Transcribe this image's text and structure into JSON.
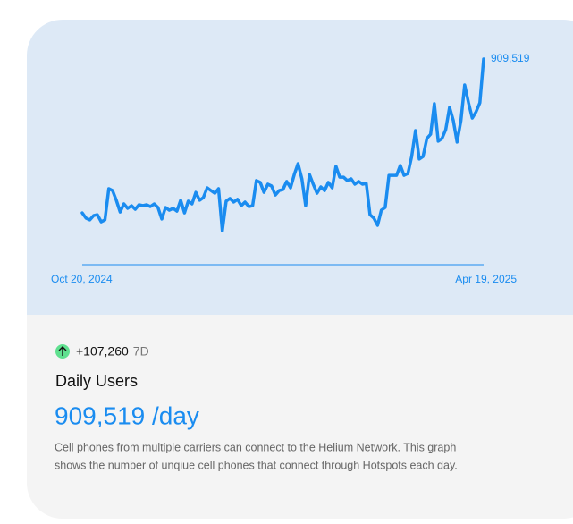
{
  "chart_data": {
    "type": "line",
    "categories": [
      "Oct 20, 2024",
      null,
      null,
      null,
      null,
      null,
      null,
      null,
      null,
      null,
      null,
      null,
      null,
      null,
      null,
      null,
      null,
      null,
      null,
      null,
      null,
      null,
      null,
      null,
      null,
      null,
      null,
      null,
      null,
      null,
      null,
      null,
      null,
      null,
      null,
      null,
      null,
      null,
      null,
      null,
      null,
      null,
      null,
      null,
      null,
      null,
      null,
      null,
      null,
      null,
      null,
      null,
      null,
      null,
      null,
      null,
      null,
      null,
      null,
      null,
      null,
      null,
      null,
      null,
      null,
      null,
      null,
      null,
      null,
      null,
      null,
      null,
      null,
      null,
      null,
      null,
      null,
      null,
      null,
      null,
      null,
      null,
      null,
      null,
      null,
      null,
      null,
      null,
      null,
      null,
      null,
      null,
      null,
      null,
      null,
      null,
      null,
      null,
      null,
      null,
      null,
      null,
      null,
      null,
      null,
      null,
      "Apr 19, 2025"
    ],
    "values": [
      229000,
      206000,
      198000,
      217000,
      221000,
      190000,
      198000,
      336000,
      328000,
      285000,
      233000,
      269000,
      249000,
      261000,
      245000,
      265000,
      261000,
      265000,
      257000,
      269000,
      253000,
      202000,
      253000,
      241000,
      249000,
      237000,
      285000,
      229000,
      281000,
      269000,
      320000,
      285000,
      297000,
      340000,
      328000,
      316000,
      336000,
      150000,
      281000,
      293000,
      277000,
      289000,
      261000,
      277000,
      257000,
      261000,
      372000,
      364000,
      320000,
      356000,
      348000,
      308000,
      328000,
      332000,
      368000,
      340000,
      399000,
      447000,
      380000,
      261000,
      399000,
      356000,
      316000,
      344000,
      328000,
      364000,
      340000,
      435000,
      387000,
      387000,
      372000,
      380000,
      356000,
      368000,
      356000,
      360000,
      221000,
      206000,
      174000,
      241000,
      253000,
      395000,
      395000,
      395000,
      439000,
      395000,
      403000,
      478000,
      593000,
      467000,
      478000,
      558000,
      577000,
      712000,
      546000,
      558000,
      597000,
      696000,
      637000,
      542000,
      637000,
      795000,
      716000,
      648000,
      676000,
      716000,
      909519
    ],
    "value_labels": [
      null,
      null,
      null,
      null,
      null,
      null,
      null,
      null,
      null,
      null,
      null,
      null,
      null,
      null,
      null,
      null,
      null,
      null,
      null,
      null,
      null,
      null,
      null,
      null,
      null,
      null,
      null,
      null,
      null,
      null,
      null,
      null,
      null,
      null,
      null,
      null,
      null,
      null,
      null,
      null,
      null,
      null,
      null,
      null,
      null,
      null,
      null,
      null,
      null,
      null,
      null,
      null,
      null,
      null,
      null,
      null,
      null,
      null,
      null,
      null,
      null,
      null,
      null,
      null,
      null,
      null,
      null,
      null,
      null,
      null,
      null,
      null,
      null,
      null,
      null,
      null,
      null,
      null,
      null,
      null,
      null,
      null,
      null,
      null,
      null,
      null,
      null,
      null,
      null,
      null,
      null,
      null,
      null,
      null,
      null,
      null,
      null,
      null,
      null,
      null,
      null,
      null,
      null,
      null,
      null,
      null,
      "909,519"
    ],
    "color": "#1a8cf0",
    "ylim": [
      0,
      909519
    ]
  },
  "change": {
    "value": "+107,260",
    "period": "7D"
  },
  "title": "Daily Users",
  "headline": "909,519 /day",
  "description": [
    "Cell phones from multiple carriers can connect to the Helium Network. This graph",
    "shows the number of unqiue cell phones that connect through Hotspots each day."
  ]
}
